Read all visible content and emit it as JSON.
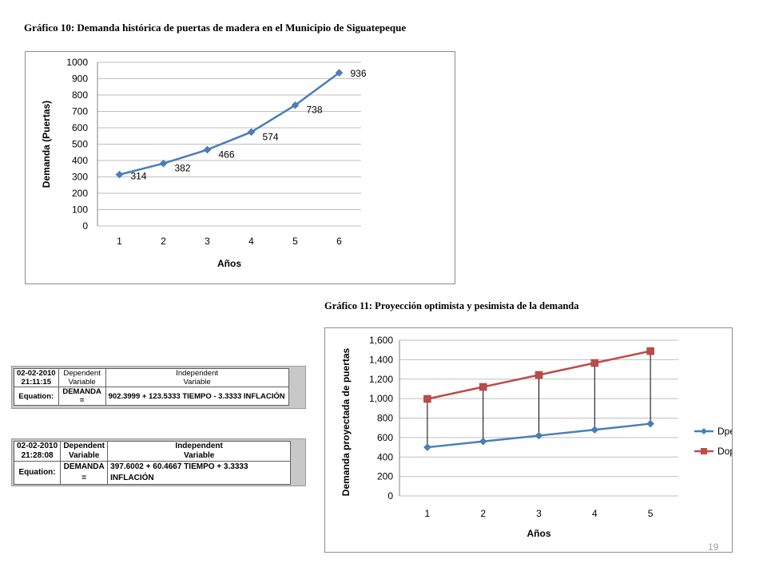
{
  "captions": {
    "chart10": "Gráfico 10: Demanda histórica de puertas de madera en el Municipio de Siguatepeque",
    "chart11": "Gráfico 11: Proyección optimista y pesimista de la demanda"
  },
  "chart_data": [
    {
      "type": "line",
      "title": "",
      "xlabel": "Años",
      "ylabel": "Demanda (Puertas)",
      "categories": [
        "1",
        "2",
        "3",
        "4",
        "5",
        "6"
      ],
      "series": [
        {
          "values": [
            314,
            382,
            466,
            574,
            738,
            936
          ]
        }
      ],
      "data_labels": [
        "314",
        "382",
        "466",
        "574",
        "738",
        "936"
      ],
      "yticks": [
        "0",
        "100",
        "200",
        "300",
        "400",
        "500",
        "600",
        "700",
        "800",
        "900",
        "1000"
      ],
      "ylim": [
        0,
        1000
      ],
      "grid": true,
      "colors": {
        "line": "#4a7ebb"
      }
    },
    {
      "type": "line",
      "title": "",
      "xlabel": "Años",
      "ylabel": "Demanda proyectada de puertas",
      "categories": [
        "1",
        "2",
        "3",
        "4",
        "5"
      ],
      "series": [
        {
          "name": "Dpe",
          "values": [
            500,
            560,
            620,
            680,
            742
          ]
        },
        {
          "name": "Dop",
          "values": [
            997,
            1120,
            1243,
            1366,
            1488
          ]
        }
      ],
      "yticks": [
        "0",
        "200",
        "400",
        "600",
        "800",
        "1,000",
        "1,200",
        "1,400",
        "1,600"
      ],
      "ylim": [
        0,
        1600
      ],
      "grid": true,
      "drop_lines": true,
      "legend": "right",
      "colors": {
        "Dpe": "#4a7ebb",
        "Dop": "#be4b48"
      }
    }
  ],
  "equations": [
    {
      "date": "02-02-2010",
      "time": "21:11:15",
      "dep_header_1": "Dependent",
      "dep_header_2": "Variable",
      "indep_header_1": "Independent",
      "indep_header_2": "Variable",
      "label": "Equation:",
      "dependent": "DEMANDA =",
      "expression": "902.3999 + 123.5333 TIEMPO - 3.3333 INFLACIÓN"
    },
    {
      "date": "02-02-2010",
      "time": "21:28:08",
      "dep_header_1": "Dependent",
      "dep_header_2": "Variable",
      "indep_header_1": "Independent",
      "indep_header_2": "Variable",
      "label": "Equation:",
      "dependent": "DEMANDA =",
      "expression": "397.6002 + 60.4667 TIEMPO + 3.3333 INFLACIÓN"
    }
  ],
  "page_number": "19"
}
